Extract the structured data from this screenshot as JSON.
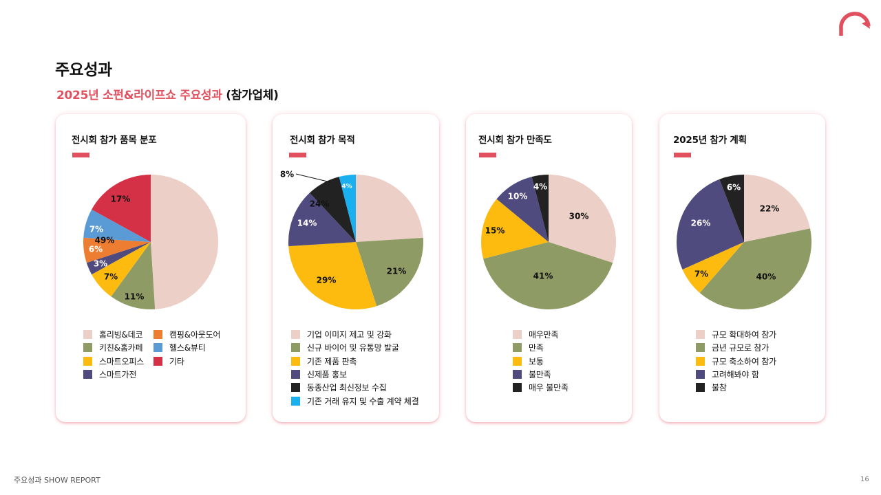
{
  "page": {
    "title": "주요성과",
    "subtitle_accent": "2025년 소펀&라이프쇼 주요성과",
    "subtitle_plain": "(참가업체)",
    "footer_left": "주요성과 SHOW REPORT",
    "footer_right": "16"
  },
  "colors": {
    "accent": "#e0505e",
    "pink": "#eccfc7",
    "olive": "#8e9b64",
    "yellow": "#fdbb0f",
    "navy": "#4f4b7f",
    "black": "#222222",
    "cyan": "#1ab0f0",
    "orange": "#ed7d31",
    "blue": "#5b9bd5",
    "red": "#d43046"
  },
  "chart_data": [
    {
      "type": "pie",
      "title": "전시회 참가 품목 분포",
      "categories": [
        "홈리빙&데코",
        "키친&홈카페",
        "스마트오피스",
        "스마트가전",
        "캠핑&아웃도어",
        "헬스&뷰티",
        "기타"
      ],
      "values": [
        49,
        11,
        7,
        3,
        6,
        7,
        17
      ],
      "labels": [
        "49%",
        "11%",
        "7%",
        "3%",
        "6%",
        "7%",
        "17%"
      ],
      "colors": [
        "#eccfc7",
        "#8e9b64",
        "#fdbb0f",
        "#4f4b7f",
        "#ed7d31",
        "#5b9bd5",
        "#d43046"
      ],
      "legend_columns": 2,
      "legend_split": 4,
      "legend_placement": "bottom"
    },
    {
      "type": "pie",
      "title": "전시회 참가 목적",
      "categories": [
        "기업 이미지 제고 및 강화",
        "신규 바이어 및 유통망 발굴",
        "기존 제품 판촉",
        "신제품 홍보",
        "동종산업 최신정보 수집",
        "기존 거래 유지 및 수출 계약 체결"
      ],
      "values": [
        24,
        21,
        29,
        14,
        8,
        4
      ],
      "labels": [
        "24%",
        "21%",
        "29%",
        "14%",
        "8%",
        "4%"
      ],
      "colors": [
        "#eccfc7",
        "#8e9b64",
        "#fdbb0f",
        "#4f4b7f",
        "#222222",
        "#1ab0f0"
      ],
      "legend_columns": 1,
      "legend_placement": "bottom"
    },
    {
      "type": "pie",
      "title": "전시회 참가 만족도",
      "categories": [
        "매우만족",
        "만족",
        "보통",
        "불만족",
        "매우 불만족"
      ],
      "values": [
        30,
        41,
        15,
        10,
        4
      ],
      "labels": [
        "30%",
        "41%",
        "15%",
        "10%",
        "4%"
      ],
      "colors": [
        "#eccfc7",
        "#8e9b64",
        "#fdbb0f",
        "#4f4b7f",
        "#222222"
      ],
      "legend_columns": 1,
      "legend_placement": "bottom"
    },
    {
      "type": "pie",
      "title": "2025년 참가 계획",
      "categories": [
        "규모 확대하여 참가",
        "금년 규모로 참가",
        "규모 축소하여 참가",
        "고려해봐야 함",
        "불참"
      ],
      "values": [
        22,
        40,
        7,
        26,
        6
      ],
      "labels": [
        "22%",
        "40%",
        "7%",
        "26%",
        "6%"
      ],
      "colors": [
        "#eccfc7",
        "#8e9b64",
        "#fdbb0f",
        "#4f4b7f",
        "#222222"
      ],
      "legend_columns": 1,
      "legend_placement": "bottom"
    }
  ]
}
